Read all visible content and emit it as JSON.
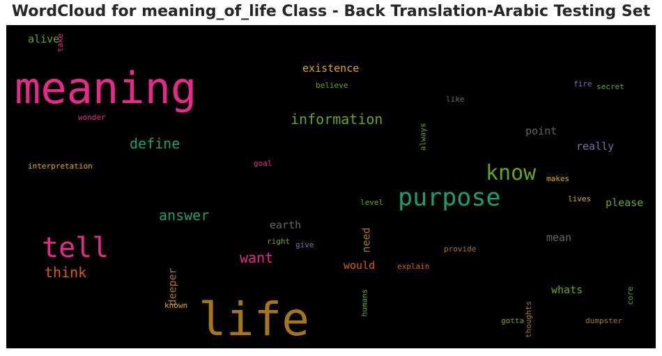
{
  "title": "WordCloud for meaning_of_life Class - Back Translation-Arabic Testing Set",
  "chart_data": {
    "type": "wordcloud",
    "background": "#000000",
    "words": [
      {
        "text": "meaning",
        "color": "#e7298a",
        "weight": 1.0
      },
      {
        "text": "life",
        "color": "#a6761d",
        "weight": 0.97
      },
      {
        "text": "purpose",
        "color": "#1b9e77",
        "weight": 0.5
      },
      {
        "text": "tell",
        "color": "#e7298a",
        "weight": 0.55
      },
      {
        "text": "know",
        "color": "#66a61e",
        "weight": 0.45
      },
      {
        "text": "information",
        "color": "#66a61e",
        "weight": 0.33
      },
      {
        "text": "define",
        "color": "#1b9e77",
        "weight": 0.32
      },
      {
        "text": "answer",
        "color": "#1b9e77",
        "weight": 0.32
      },
      {
        "text": "want",
        "color": "#e7298a",
        "weight": 0.32
      },
      {
        "text": "think",
        "color": "#d95f02",
        "weight": 0.32
      },
      {
        "text": "existence",
        "color": "#e6ab02",
        "weight": 0.25
      },
      {
        "text": "alive",
        "color": "#66a61e",
        "weight": 0.25
      },
      {
        "text": "earth",
        "color": "#666666",
        "weight": 0.25
      },
      {
        "text": "point",
        "color": "#666666",
        "weight": 0.25
      },
      {
        "text": "really",
        "color": "#7570b3",
        "weight": 0.25
      },
      {
        "text": "please",
        "color": "#66a61e",
        "weight": 0.25
      },
      {
        "text": "mean",
        "color": "#666666",
        "weight": 0.25
      },
      {
        "text": "would",
        "color": "#d95f02",
        "weight": 0.25
      },
      {
        "text": "whats",
        "color": "#66a61e",
        "weight": 0.25
      },
      {
        "text": "need",
        "color": "#a6761d",
        "weight": 0.25
      },
      {
        "text": "deeper",
        "color": "#a6761d",
        "weight": 0.25
      },
      {
        "text": "take",
        "color": "#e7298a",
        "weight": 0.15
      },
      {
        "text": "believe",
        "color": "#66a61e",
        "weight": 0.15
      },
      {
        "text": "like",
        "color": "#666666",
        "weight": 0.15
      },
      {
        "text": "fire",
        "color": "#7570b3",
        "weight": 0.15
      },
      {
        "text": "secret",
        "color": "#66a61e",
        "weight": 0.15
      },
      {
        "text": "wonder",
        "color": "#e7298a",
        "weight": 0.15
      },
      {
        "text": "always",
        "color": "#66a61e",
        "weight": 0.15
      },
      {
        "text": "interpretation",
        "color": "#e6ab02",
        "weight": 0.15
      },
      {
        "text": "goal",
        "color": "#e7298a",
        "weight": 0.15
      },
      {
        "text": "makes",
        "color": "#e6ab02",
        "weight": 0.15
      },
      {
        "text": "level",
        "color": "#66a61e",
        "weight": 0.15
      },
      {
        "text": "lives",
        "color": "#e6ab02",
        "weight": 0.15
      },
      {
        "text": "right",
        "color": "#66a61e",
        "weight": 0.15
      },
      {
        "text": "give",
        "color": "#7570b3",
        "weight": 0.15
      },
      {
        "text": "provide",
        "color": "#a6761d",
        "weight": 0.15
      },
      {
        "text": "explain",
        "color": "#d95f02",
        "weight": 0.15
      },
      {
        "text": "humans",
        "color": "#66a61e",
        "weight": 0.15
      },
      {
        "text": "thoughts",
        "color": "#a6761d",
        "weight": 0.15
      },
      {
        "text": "core",
        "color": "#66a61e",
        "weight": 0.15
      },
      {
        "text": "known",
        "color": "#e6ab02",
        "weight": 0.15
      },
      {
        "text": "gotta",
        "color": "#66a61e",
        "weight": 0.15
      },
      {
        "text": "dumpster",
        "color": "#a6761d",
        "weight": 0.15
      }
    ]
  }
}
